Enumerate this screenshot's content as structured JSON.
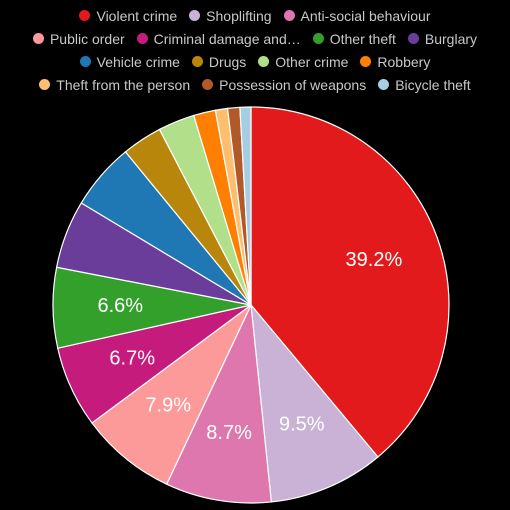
{
  "chart_data": {
    "type": "pie",
    "title": "",
    "series": [
      {
        "name": "Violent crime",
        "value": 39.2,
        "color": "#e31a1c",
        "label": "39.2%"
      },
      {
        "name": "Shoplifting",
        "value": 9.5,
        "color": "#cab2d6",
        "label": "9.5%"
      },
      {
        "name": "Anti-social behaviour",
        "value": 8.7,
        "color": "#de77ae",
        "label": "8.7%"
      },
      {
        "name": "Public order",
        "value": 7.9,
        "color": "#fb9a99",
        "label": "7.9%"
      },
      {
        "name": "Criminal damage and…",
        "value": 6.7,
        "color": "#c51b7d",
        "label": "6.7%"
      },
      {
        "name": "Other theft",
        "value": 6.6,
        "color": "#33a02c",
        "label": "6.6%"
      },
      {
        "name": "Burglary",
        "value": 5.6,
        "color": "#6a3d9a",
        "label": ""
      },
      {
        "name": "Vehicle crime",
        "value": 5.5,
        "color": "#1f78b4",
        "label": ""
      },
      {
        "name": "Drugs",
        "value": 3.3,
        "color": "#b8860b",
        "label": ""
      },
      {
        "name": "Other crime",
        "value": 3.0,
        "color": "#b2df8a",
        "label": ""
      },
      {
        "name": "Robbery",
        "value": 1.8,
        "color": "#ff7f00",
        "label": ""
      },
      {
        "name": "Theft from the person",
        "value": 1.0,
        "color": "#fdbf6f",
        "label": ""
      },
      {
        "name": "Possession of weapons",
        "value": 1.0,
        "color": "#b15928",
        "label": ""
      },
      {
        "name": "Bicycle theft",
        "value": 0.9,
        "color": "#a6cee3",
        "label": ""
      }
    ],
    "legend_position": "top",
    "start_angle_deg": 0,
    "direction": "clockwise"
  }
}
